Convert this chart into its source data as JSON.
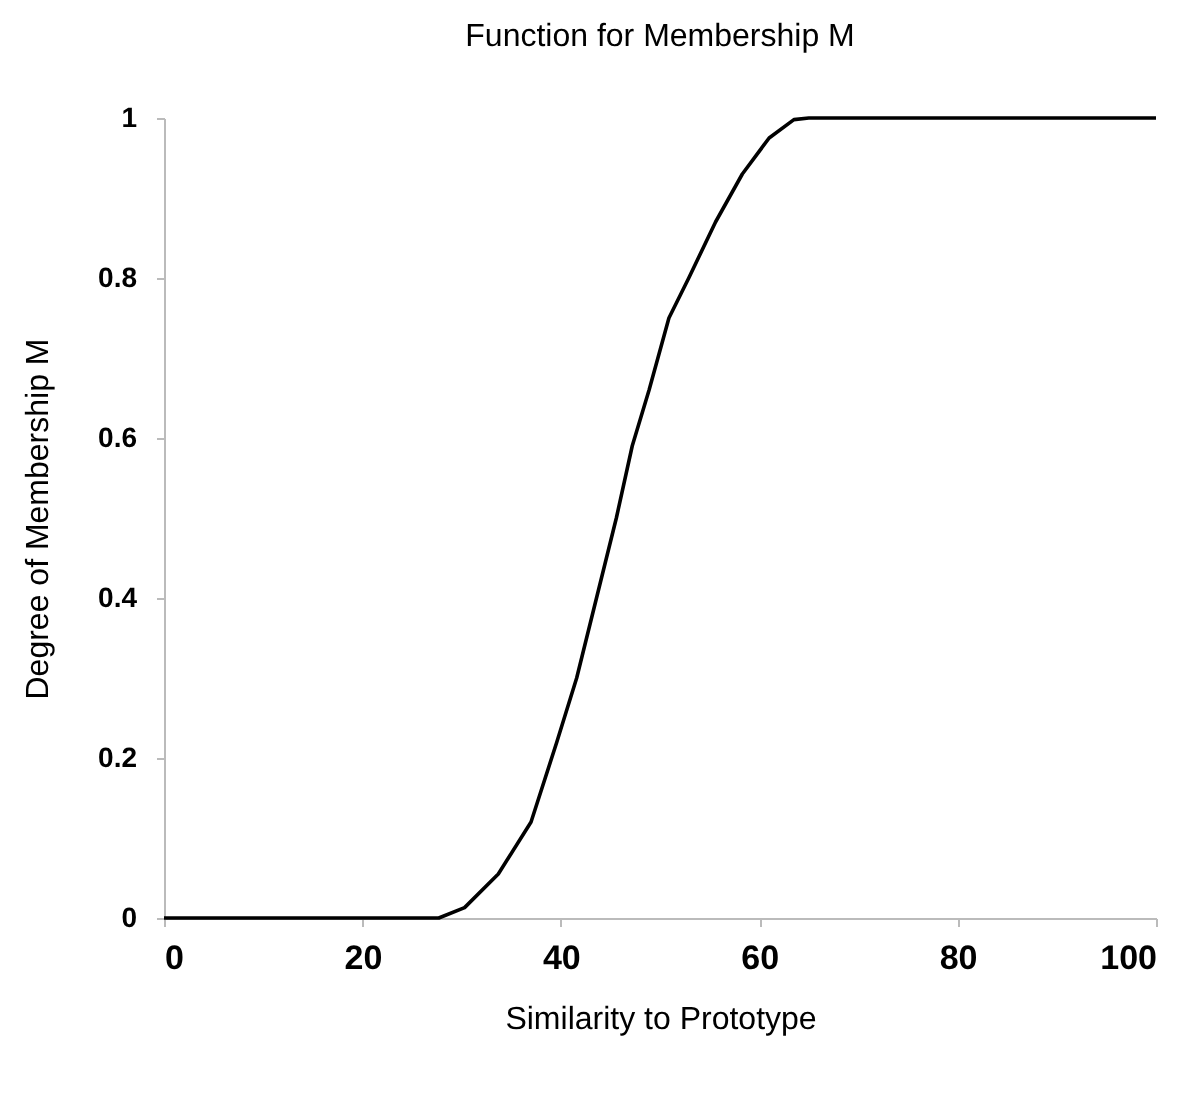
{
  "chart_data": {
    "type": "line",
    "title": "Function for Membership M",
    "xlabel": "Similarity to Prototype",
    "ylabel": "Degree of Membership M",
    "x": [
      0,
      10,
      20,
      27.7,
      30.3,
      33.7,
      37,
      39.6,
      41.6,
      43.6,
      45.6,
      47.2,
      48.9,
      50.9,
      52.9,
      55.6,
      58.3,
      61,
      63.5,
      65,
      80,
      100
    ],
    "series": [
      {
        "color": "#000000",
        "values": [
          0,
          0,
          0,
          0,
          0.013,
          0.055,
          0.12,
          0.22,
          0.3,
          0.4,
          0.5,
          0.59,
          0.66,
          0.75,
          0.8,
          0.87,
          0.93,
          0.975,
          0.998,
          1,
          1,
          1
        ]
      }
    ],
    "xlim": [
      0,
      100
    ],
    "xticks": [
      0,
      20,
      40,
      60,
      80,
      100
    ],
    "ylim": [
      0,
      1
    ],
    "yticks": [
      0,
      0.2,
      0.4,
      0.6,
      0.8,
      1
    ],
    "grid": false,
    "marker": "none",
    "line_style": "solid"
  }
}
